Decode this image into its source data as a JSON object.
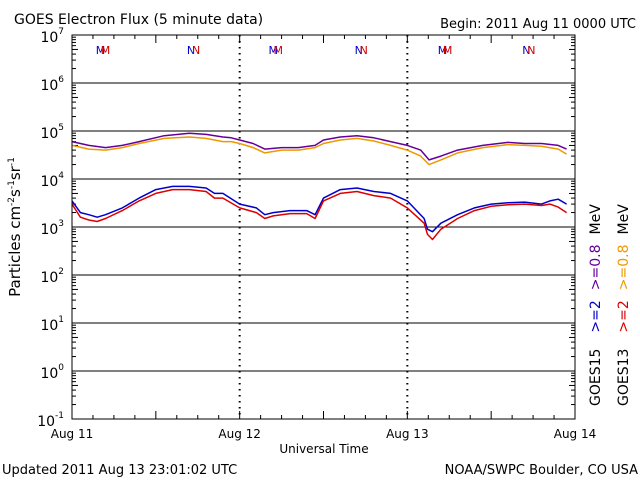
{
  "chart_data": {
    "type": "line",
    "title": "GOES Electron Flux (5 minute data)",
    "begin_label": "Begin: 2011 Aug 11 0000 UTC",
    "updated_label": "Updated 2011 Aug 13 23:01:02 UTC",
    "credit_label": "NOAA/SWPC Boulder, CO USA",
    "xlabel": "Universal Time",
    "ylabel_parts": [
      "Particles cm",
      "-2",
      "s",
      "-1",
      "sr",
      "-1"
    ],
    "y_scale": "log",
    "ylim_exp": [
      -1,
      7
    ],
    "y_ticks": [
      {
        "base": "10",
        "exp": "7"
      },
      {
        "base": "10",
        "exp": "6"
      },
      {
        "base": "10",
        "exp": "5"
      },
      {
        "base": "10",
        "exp": "4"
      },
      {
        "base": "10",
        "exp": "3"
      },
      {
        "base": "10",
        "exp": "2"
      },
      {
        "base": "10",
        "exp": "1"
      },
      {
        "base": "10",
        "exp": "0"
      },
      {
        "base": "10",
        "exp": "-1"
      }
    ],
    "x_unit": "days since 2011 Aug 11 0000 UTC",
    "xlim": [
      0,
      3
    ],
    "x_ticks": [
      {
        "x": 0,
        "label": "Aug 11"
      },
      {
        "x": 1,
        "label": "Aug 12"
      },
      {
        "x": 2,
        "label": "Aug 13"
      },
      {
        "x": 3,
        "label": "Aug 14"
      }
    ],
    "threshold": {
      "value": 1000,
      "style": "dashed"
    },
    "markers": [
      {
        "label": "M",
        "x": 0.17,
        "color": "#0000cc"
      },
      {
        "label": "M",
        "x": 0.2,
        "color": "#cc0000"
      },
      {
        "label": "N",
        "x": 0.71,
        "color": "#0000cc"
      },
      {
        "label": "N",
        "x": 0.74,
        "color": "#cc0000"
      },
      {
        "label": "M",
        "x": 1.2,
        "color": "#0000cc"
      },
      {
        "label": "M",
        "x": 1.23,
        "color": "#cc0000"
      },
      {
        "label": "N",
        "x": 1.71,
        "color": "#0000cc"
      },
      {
        "label": "N",
        "x": 1.74,
        "color": "#cc0000"
      },
      {
        "label": "M",
        "x": 2.21,
        "color": "#0000cc"
      },
      {
        "label": "M",
        "x": 2.24,
        "color": "#cc0000"
      },
      {
        "label": "N",
        "x": 2.71,
        "color": "#0000cc"
      },
      {
        "label": "N",
        "x": 2.74,
        "color": "#cc0000"
      }
    ],
    "legend": [
      {
        "text": "GOES15",
        "color": "#000000"
      },
      {
        "text": ">=2",
        "color": "#0000cc"
      },
      {
        "text": ">=0.8",
        "color": "#660099"
      },
      {
        "text": "MeV",
        "color": "#000000"
      },
      {
        "text": "GOES13",
        "color": "#000000"
      },
      {
        "text": ">=2",
        "color": "#dd0000"
      },
      {
        "text": ">=0.8",
        "color": "#ee9900"
      },
      {
        "text": "MeV",
        "color": "#000000"
      }
    ],
    "series": [
      {
        "name": "GOES15 >=0.8 MeV",
        "color": "#660099",
        "x": [
          0,
          0.1,
          0.2,
          0.3,
          0.4,
          0.55,
          0.7,
          0.8,
          0.9,
          0.95,
          1.0,
          1.08,
          1.15,
          1.25,
          1.35,
          1.45,
          1.5,
          1.6,
          1.7,
          1.8,
          1.9,
          2.0,
          2.08,
          2.13,
          2.2,
          2.3,
          2.45,
          2.6,
          2.7,
          2.8,
          2.9,
          2.95
        ],
        "y": [
          60000,
          50000,
          45000,
          50000,
          60000,
          80000,
          90000,
          85000,
          75000,
          72000,
          65000,
          55000,
          42000,
          45000,
          45000,
          50000,
          65000,
          75000,
          80000,
          72000,
          60000,
          50000,
          40000,
          25000,
          30000,
          40000,
          50000,
          58000,
          55000,
          55000,
          50000,
          42000
        ]
      },
      {
        "name": "GOES13 >=0.8 MeV",
        "color": "#ee9900",
        "x": [
          0,
          0.1,
          0.2,
          0.3,
          0.4,
          0.55,
          0.7,
          0.8,
          0.9,
          0.95,
          1.0,
          1.08,
          1.15,
          1.25,
          1.35,
          1.45,
          1.5,
          1.6,
          1.7,
          1.8,
          1.9,
          2.0,
          2.08,
          2.13,
          2.2,
          2.3,
          2.45,
          2.6,
          2.7,
          2.8,
          2.9,
          2.95
        ],
        "y": [
          50000,
          42000,
          40000,
          45000,
          55000,
          70000,
          75000,
          70000,
          60000,
          60000,
          55000,
          45000,
          35000,
          40000,
          40000,
          45000,
          55000,
          65000,
          70000,
          62000,
          50000,
          40000,
          30000,
          20000,
          25000,
          35000,
          45000,
          52000,
          50000,
          48000,
          42000,
          33000
        ]
      },
      {
        "name": "GOES15 >=2 MeV",
        "color": "#0000cc",
        "x": [
          0,
          0.05,
          0.1,
          0.15,
          0.2,
          0.3,
          0.4,
          0.5,
          0.6,
          0.7,
          0.8,
          0.85,
          0.9,
          1.0,
          1.1,
          1.15,
          1.2,
          1.3,
          1.4,
          1.45,
          1.5,
          1.6,
          1.7,
          1.8,
          1.9,
          2.0,
          2.1,
          2.12,
          2.15,
          2.2,
          2.3,
          2.4,
          2.5,
          2.6,
          2.7,
          2.8,
          2.85,
          2.9,
          2.95
        ],
        "y": [
          3500,
          2000,
          1800,
          1600,
          1800,
          2500,
          4000,
          6000,
          7000,
          7000,
          6500,
          5000,
          5000,
          3000,
          2500,
          1800,
          2000,
          2200,
          2200,
          1800,
          4000,
          6000,
          6500,
          5500,
          5000,
          3500,
          1500,
          900,
          800,
          1200,
          1800,
          2500,
          3000,
          3200,
          3300,
          3000,
          3500,
          3800,
          3000
        ]
      },
      {
        "name": "GOES13 >=2 MeV",
        "color": "#dd0000",
        "x": [
          0,
          0.05,
          0.1,
          0.15,
          0.2,
          0.3,
          0.4,
          0.5,
          0.6,
          0.7,
          0.8,
          0.85,
          0.9,
          1.0,
          1.1,
          1.15,
          1.2,
          1.3,
          1.4,
          1.45,
          1.5,
          1.6,
          1.7,
          1.8,
          1.9,
          2.0,
          2.1,
          2.12,
          2.15,
          2.2,
          2.3,
          2.4,
          2.5,
          2.6,
          2.7,
          2.8,
          2.85,
          2.9,
          2.95
        ],
        "y": [
          3000,
          1600,
          1400,
          1300,
          1500,
          2200,
          3500,
          5000,
          6000,
          6000,
          5500,
          4000,
          4000,
          2500,
          2000,
          1500,
          1700,
          1900,
          1900,
          1500,
          3500,
          5000,
          5500,
          4500,
          4000,
          2500,
          1200,
          700,
          550,
          900,
          1500,
          2200,
          2700,
          2900,
          3000,
          2800,
          3000,
          2600,
          2000
        ]
      }
    ]
  }
}
